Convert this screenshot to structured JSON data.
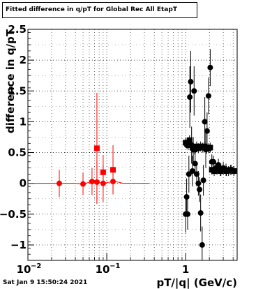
{
  "title": "Fitted difference in q/pT for Global Rec All EtapT",
  "timestamp": "Sat Jan  9 15:50:24 2021",
  "chart_data": {
    "type": "scatter",
    "xlabel": "pT/|q| (GeV/c)",
    "ylabel": "difference in q/pT",
    "xscale": "log",
    "xlim": [
      0.01,
      4.5
    ],
    "ylim": [
      -1.25,
      2.5
    ],
    "x_ticks": [
      {
        "value": 0.01,
        "label": "10"
      },
      {
        "value": 0.1,
        "label": "10"
      },
      {
        "value": 1,
        "label": "1"
      }
    ],
    "x_tick_exponents": [
      "−2",
      "−1",
      ""
    ],
    "y_ticks": [
      {
        "value": -1,
        "label": "−1"
      },
      {
        "value": -0.5,
        "label": "−0.5"
      },
      {
        "value": 0,
        "label": "0"
      },
      {
        "value": 0.5,
        "label": "0.5"
      },
      {
        "value": 1,
        "label": "1"
      },
      {
        "value": 1.5,
        "label": "1.5"
      },
      {
        "value": 2,
        "label": "2"
      },
      {
        "value": 2.5,
        "label": "2.5"
      }
    ],
    "grid": true,
    "series": [
      {
        "color": "#ff0000",
        "marker": "circle",
        "points": [
          {
            "x": 0.025,
            "y": 0.0,
            "err": 0.22
          },
          {
            "x": 0.05,
            "y": -0.01,
            "err": 0.18
          },
          {
            "x": 0.065,
            "y": 0.03,
            "err": 0.22
          },
          {
            "x": 0.075,
            "y": 0.02,
            "err": 0.35
          },
          {
            "x": 0.09,
            "y": 0.0,
            "err": 0.3
          },
          {
            "x": 0.12,
            "y": 0.03,
            "err": 0.2
          }
        ],
        "line": [
          [
            0.01,
            0.0
          ],
          [
            0.04,
            0.0
          ],
          [
            0.05,
            -0.01
          ],
          [
            0.065,
            0.03
          ],
          [
            0.075,
            0.02
          ],
          [
            0.09,
            0.0
          ],
          [
            0.12,
            0.03
          ],
          [
            0.14,
            0.02
          ],
          [
            0.16,
            0.0
          ],
          [
            0.35,
            0.0
          ]
        ]
      },
      {
        "color": "#ff0000",
        "marker": "square",
        "points": [
          {
            "x": 0.075,
            "y": 0.57,
            "err": 0.9
          },
          {
            "x": 0.09,
            "y": 0.18,
            "err": 0.28
          },
          {
            "x": 0.12,
            "y": 0.22,
            "err": 0.4
          }
        ]
      },
      {
        "color": "#000000",
        "marker": "circle",
        "points": [
          {
            "x": 1.0,
            "y": -0.5,
            "err": 0.3
          },
          {
            "x": 1.03,
            "y": -0.22,
            "err": 0.3
          },
          {
            "x": 1.06,
            "y": -0.5,
            "err": 0.25
          },
          {
            "x": 1.1,
            "y": 0.15,
            "err": 0.3
          },
          {
            "x": 1.13,
            "y": 1.4,
            "err": 0.5
          },
          {
            "x": 1.16,
            "y": 1.65,
            "err": 0.5
          },
          {
            "x": 1.19,
            "y": 0.62,
            "err": 0.3
          },
          {
            "x": 1.22,
            "y": 0.2,
            "err": 0.25
          },
          {
            "x": 1.25,
            "y": 0.55,
            "err": 0.2
          },
          {
            "x": 1.28,
            "y": 1.5,
            "err": 0.4
          },
          {
            "x": 1.32,
            "y": 0.32,
            "err": 0.2
          },
          {
            "x": 1.38,
            "y": 0.15,
            "err": 0.2
          },
          {
            "x": 1.45,
            "y": 0.0,
            "err": 0.2
          },
          {
            "x": 1.5,
            "y": -0.1,
            "err": 0.2
          },
          {
            "x": 1.55,
            "y": -0.48,
            "err": 0.3
          },
          {
            "x": 1.62,
            "y": -1.0,
            "err": 0.3
          },
          {
            "x": 1.68,
            "y": 0.05,
            "err": 0.25
          },
          {
            "x": 1.75,
            "y": 1.0,
            "err": 0.4
          },
          {
            "x": 1.8,
            "y": 0.55,
            "err": 0.3
          },
          {
            "x": 1.87,
            "y": 0.85,
            "err": 0.3
          },
          {
            "x": 1.95,
            "y": 1.42,
            "err": 0.3
          },
          {
            "x": 2.05,
            "y": 1.88,
            "err": 0.3
          },
          {
            "x": 2.15,
            "y": 0.35,
            "err": 0.12
          },
          {
            "x": 2.25,
            "y": 0.35,
            "err": 0.1
          },
          {
            "x": 2.4,
            "y": 0.25,
            "err": 0.1
          },
          {
            "x": 2.6,
            "y": 0.3,
            "err": 0.1
          },
          {
            "x": 2.8,
            "y": 0.22,
            "err": 0.1
          },
          {
            "x": 3.0,
            "y": 0.25,
            "err": 0.1
          },
          {
            "x": 3.25,
            "y": 0.22,
            "err": 0.1
          },
          {
            "x": 3.5,
            "y": 0.2,
            "err": 0.08
          },
          {
            "x": 3.8,
            "y": 0.22,
            "err": 0.08
          },
          {
            "x": 4.1,
            "y": 0.2,
            "err": 0.08
          }
        ]
      },
      {
        "color": "#000000",
        "marker": "square",
        "points": [
          {
            "x": 1.0,
            "y": 0.66,
            "err": 0.08
          },
          {
            "x": 1.04,
            "y": 0.64,
            "err": 0.08
          },
          {
            "x": 1.08,
            "y": 0.62,
            "err": 0.08
          },
          {
            "x": 1.12,
            "y": 0.7,
            "err": 0.08
          },
          {
            "x": 1.16,
            "y": 0.62,
            "err": 0.08
          },
          {
            "x": 1.22,
            "y": 0.58,
            "err": 0.08
          },
          {
            "x": 1.3,
            "y": 0.55,
            "err": 0.08
          },
          {
            "x": 1.38,
            "y": 0.6,
            "err": 0.08
          },
          {
            "x": 1.45,
            "y": 0.57,
            "err": 0.08
          },
          {
            "x": 1.55,
            "y": 0.6,
            "err": 0.08
          },
          {
            "x": 1.65,
            "y": 0.58,
            "err": 0.08
          },
          {
            "x": 1.75,
            "y": 0.6,
            "err": 0.08
          },
          {
            "x": 1.85,
            "y": 0.56,
            "err": 0.08
          },
          {
            "x": 1.95,
            "y": 0.57,
            "err": 0.08
          },
          {
            "x": 2.05,
            "y": 0.58,
            "err": 0.08
          },
          {
            "x": 2.15,
            "y": 0.22,
            "err": 0.08
          },
          {
            "x": 2.3,
            "y": 0.2,
            "err": 0.08
          },
          {
            "x": 2.5,
            "y": 0.22,
            "err": 0.08
          },
          {
            "x": 2.75,
            "y": 0.2,
            "err": 0.08
          },
          {
            "x": 3.0,
            "y": 0.22,
            "err": 0.08
          },
          {
            "x": 3.3,
            "y": 0.2,
            "err": 0.08
          },
          {
            "x": 3.7,
            "y": 0.22,
            "err": 0.08
          },
          {
            "x": 4.1,
            "y": 0.2,
            "err": 0.08
          }
        ]
      }
    ]
  }
}
